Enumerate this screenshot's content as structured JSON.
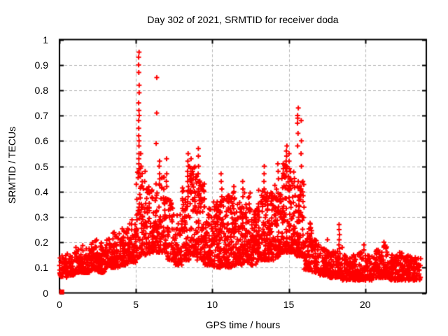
{
  "chart_data": {
    "type": "scatter",
    "title": "Day 302 of 2021, SRMTID for receiver doda",
    "xlabel": "GPS time / hours",
    "ylabel": "SRMTID / TECUs",
    "xlim": [
      0,
      24
    ],
    "ylim": [
      0,
      1
    ],
    "xticks": [
      0,
      5,
      10,
      15,
      20
    ],
    "yticks": [
      0,
      0.1,
      0.2,
      0.3,
      0.4,
      0.5,
      0.6,
      0.7,
      0.8,
      0.9,
      1
    ],
    "grid": "dashed",
    "legend": "none",
    "marker": "plus",
    "marker_color": "#ff0000",
    "grid_color": "#b3b3b3",
    "axis_color": "#000000",
    "background_color": "#ffffff",
    "seed": 302,
    "density_clusters": [
      [
        0.0,
        0.5,
        42,
        0.06,
        0.15
      ],
      [
        0.5,
        1.0,
        44,
        0.07,
        0.16
      ],
      [
        1.0,
        1.5,
        48,
        0.08,
        0.18
      ],
      [
        1.5,
        2.0,
        50,
        0.08,
        0.19
      ],
      [
        2.0,
        2.5,
        52,
        0.09,
        0.21
      ],
      [
        2.5,
        3.0,
        50,
        0.08,
        0.2
      ],
      [
        3.0,
        3.5,
        52,
        0.1,
        0.22
      ],
      [
        3.5,
        4.0,
        55,
        0.1,
        0.24
      ],
      [
        4.0,
        4.5,
        58,
        0.11,
        0.27
      ],
      [
        4.5,
        5.0,
        58,
        0.12,
        0.3
      ],
      [
        5.0,
        5.5,
        68,
        0.14,
        0.5
      ],
      [
        5.5,
        6.0,
        60,
        0.15,
        0.42
      ],
      [
        6.0,
        6.5,
        58,
        0.16,
        0.44
      ],
      [
        6.5,
        7.0,
        58,
        0.16,
        0.46
      ],
      [
        7.0,
        7.5,
        55,
        0.13,
        0.38
      ],
      [
        7.5,
        8.0,
        52,
        0.11,
        0.32
      ],
      [
        8.0,
        8.5,
        70,
        0.13,
        0.42
      ],
      [
        8.5,
        9.0,
        75,
        0.15,
        0.5
      ],
      [
        9.0,
        9.5,
        72,
        0.13,
        0.45
      ],
      [
        9.5,
        10.0,
        70,
        0.11,
        0.34
      ],
      [
        10.0,
        10.5,
        72,
        0.1,
        0.36
      ],
      [
        10.5,
        11.0,
        75,
        0.1,
        0.38
      ],
      [
        11.0,
        11.5,
        75,
        0.1,
        0.4
      ],
      [
        11.5,
        12.0,
        75,
        0.11,
        0.36
      ],
      [
        12.0,
        12.5,
        78,
        0.12,
        0.4
      ],
      [
        12.5,
        13.0,
        75,
        0.11,
        0.34
      ],
      [
        13.0,
        13.5,
        78,
        0.13,
        0.42
      ],
      [
        13.5,
        14.0,
        78,
        0.13,
        0.4
      ],
      [
        14.0,
        14.5,
        78,
        0.14,
        0.43
      ],
      [
        14.5,
        15.0,
        80,
        0.16,
        0.52
      ],
      [
        15.0,
        15.5,
        80,
        0.16,
        0.48
      ],
      [
        15.5,
        16.0,
        80,
        0.14,
        0.44
      ],
      [
        16.0,
        16.5,
        65,
        0.09,
        0.28
      ],
      [
        16.5,
        17.0,
        58,
        0.08,
        0.21
      ],
      [
        17.0,
        17.5,
        55,
        0.07,
        0.18
      ],
      [
        17.5,
        18.0,
        55,
        0.06,
        0.17
      ],
      [
        18.0,
        18.5,
        55,
        0.06,
        0.18
      ],
      [
        18.5,
        19.0,
        55,
        0.05,
        0.15
      ],
      [
        19.0,
        19.5,
        55,
        0.05,
        0.15
      ],
      [
        19.5,
        20.0,
        56,
        0.05,
        0.16
      ],
      [
        20.0,
        20.5,
        55,
        0.05,
        0.15
      ],
      [
        20.5,
        21.0,
        55,
        0.06,
        0.17
      ],
      [
        21.0,
        21.5,
        56,
        0.06,
        0.19
      ],
      [
        21.5,
        22.0,
        55,
        0.05,
        0.15
      ],
      [
        22.0,
        22.5,
        55,
        0.05,
        0.16
      ],
      [
        22.5,
        23.0,
        55,
        0.05,
        0.15
      ],
      [
        23.0,
        23.65,
        62,
        0.05,
        0.14
      ]
    ],
    "spike_columns": [
      {
        "x": 5.2,
        "ys": [
          0.95,
          0.93,
          0.9,
          0.87,
          0.82,
          0.79,
          0.75,
          0.72,
          0.7,
          0.68,
          0.65,
          0.62,
          0.6,
          0.58,
          0.55,
          0.53,
          0.51,
          0.49,
          0.47
        ]
      },
      {
        "x": 5.32,
        "ys": [
          0.55,
          0.5,
          0.46
        ]
      },
      {
        "x": 5.6,
        "ys": [
          0.48,
          0.44
        ]
      },
      {
        "x": 6.35,
        "ys": [
          0.85,
          0.71,
          0.59
        ]
      },
      {
        "x": 6.55,
        "ys": [
          0.52,
          0.5,
          0.47,
          0.45,
          0.43
        ]
      },
      {
        "x": 7.0,
        "ys": [
          0.53,
          0.47,
          0.42
        ]
      },
      {
        "x": 8.4,
        "ys": [
          0.55,
          0.52,
          0.5,
          0.48,
          0.46,
          0.44,
          0.42,
          0.4,
          0.38,
          0.36
        ]
      },
      {
        "x": 8.6,
        "ys": [
          0.53,
          0.49,
          0.45
        ]
      },
      {
        "x": 9.1,
        "ys": [
          0.57,
          0.54,
          0.5,
          0.47,
          0.44,
          0.41
        ]
      },
      {
        "x": 9.45,
        "ys": [
          0.43,
          0.4,
          0.37
        ]
      },
      {
        "x": 10.6,
        "ys": [
          0.47,
          0.44,
          0.41,
          0.38
        ]
      },
      {
        "x": 11.4,
        "ys": [
          0.42,
          0.4,
          0.37
        ]
      },
      {
        "x": 12.0,
        "ys": [
          0.44,
          0.41,
          0.38
        ]
      },
      {
        "x": 13.4,
        "ys": [
          0.5,
          0.47,
          0.44,
          0.41,
          0.38
        ]
      },
      {
        "x": 14.3,
        "ys": [
          0.51,
          0.48,
          0.45
        ]
      },
      {
        "x": 14.85,
        "ys": [
          0.58,
          0.56,
          0.54,
          0.52,
          0.5,
          0.48,
          0.46
        ]
      },
      {
        "x": 15.05,
        "ys": [
          0.55,
          0.52,
          0.49
        ]
      },
      {
        "x": 15.6,
        "ys": [
          0.73,
          0.7,
          0.69,
          0.67,
          0.63,
          0.58,
          0.44,
          0.38
        ]
      },
      {
        "x": 15.8,
        "ys": [
          0.68,
          0.6,
          0.55,
          0.5
        ]
      },
      {
        "x": 17.55,
        "ys": [
          0.21
        ]
      },
      {
        "x": 18.3,
        "ys": [
          0.27,
          0.25,
          0.23,
          0.21,
          0.19
        ]
      },
      {
        "x": 19.9,
        "ys": [
          0.19,
          0.17
        ]
      },
      {
        "x": 21.2,
        "ys": [
          0.2,
          0.18
        ]
      }
    ],
    "isolated_points": [
      {
        "x": 0.15,
        "y": 0.004,
        "marker": "square"
      }
    ]
  }
}
